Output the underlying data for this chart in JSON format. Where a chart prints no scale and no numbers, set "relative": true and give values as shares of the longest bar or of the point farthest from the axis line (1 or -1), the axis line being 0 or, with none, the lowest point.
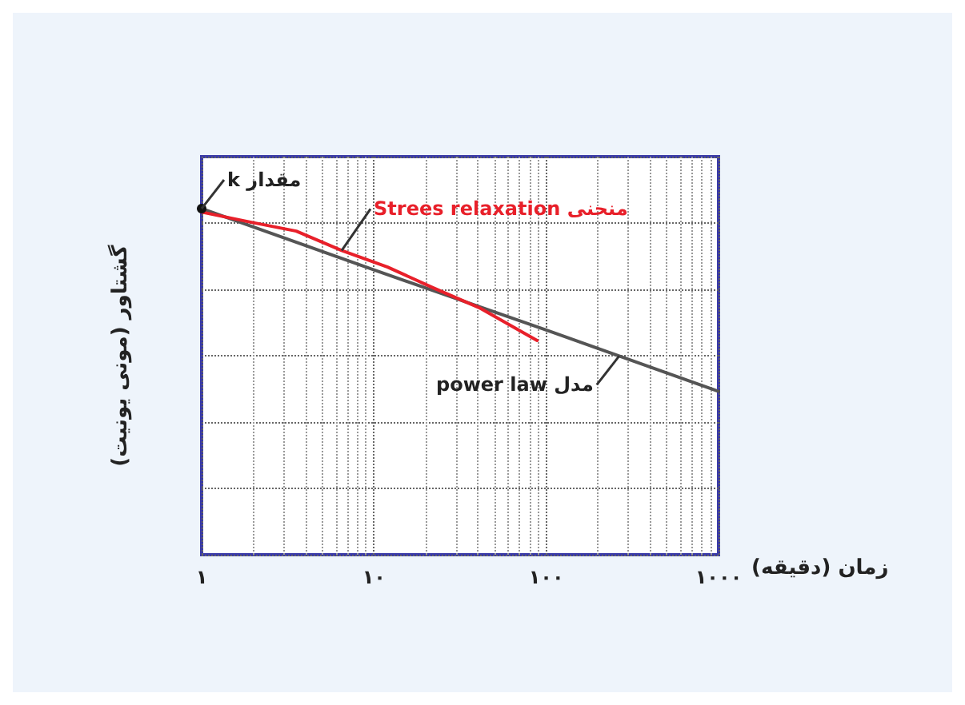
{
  "chart_data": {
    "type": "line",
    "relative": true,
    "xlabel": "زمان (دقیقه)",
    "ylabel": "گشتاور (مونی یونیت)",
    "xlim": [
      1,
      1000
    ],
    "xticks": [
      {
        "value": 1,
        "label": "١"
      },
      {
        "value": 10,
        "label": "١٠"
      },
      {
        "value": 100,
        "label": "١٠٠"
      },
      {
        "value": 1000,
        "label": "١٠٠٠"
      }
    ],
    "log": "x",
    "grid": true,
    "marker": "none",
    "line_style": "solid",
    "series": [
      {
        "color": "#555555",
        "x": [
          1,
          10,
          100,
          265,
          1000
        ],
        "values": [
          1,
          0.823,
          0.649,
          0.574,
          0.472
        ]
      },
      {
        "color": "#e8202a",
        "x": [
          1,
          1.92,
          3.54,
          6.5,
          12,
          22.1,
          40.7,
          88.5
        ],
        "values": [
          0.99,
          0.961,
          0.935,
          0.879,
          0.831,
          0.771,
          0.714,
          0.619
        ]
      }
    ],
    "annotations": [
      {
        "text": "k مقدار",
        "x": 1,
        "y": 1
      },
      {
        "text": "Strees relaxation منحنی",
        "x": 6.5,
        "y": 0.879
      },
      {
        "text": "power law مدل",
        "x": 265,
        "y": 0.574
      }
    ]
  }
}
